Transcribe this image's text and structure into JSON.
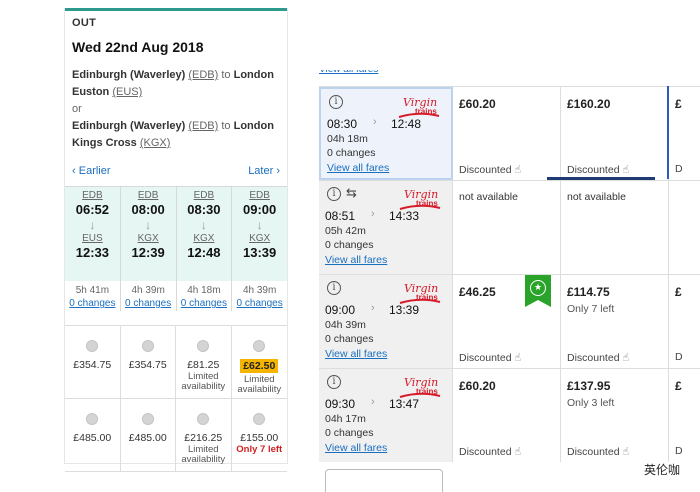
{
  "outbound": {
    "label": "OUT",
    "date": "Wed 22nd Aug 2018",
    "route1": {
      "from": "Edinburgh (Waverley)",
      "from_code": "(EDB)",
      "to_word": "to",
      "to": "London Euston",
      "to_code": "(EUS)"
    },
    "or": "or",
    "route2": {
      "from": "Edinburgh (Waverley)",
      "from_code": "(EDB)",
      "to_word": "to",
      "to": "London Kings Cross",
      "to_code": "(KGX)"
    },
    "earlier": "Earlier",
    "later": "Later",
    "trains": [
      {
        "from": "EDB",
        "dep": "06:52",
        "to": "EUS",
        "arr": "12:33",
        "dur": "5h 41m",
        "changes": "0 changes"
      },
      {
        "from": "EDB",
        "dep": "08:00",
        "to": "KGX",
        "arr": "12:39",
        "dur": "4h 39m",
        "changes": "0 changes"
      },
      {
        "from": "EDB",
        "dep": "08:30",
        "to": "KGX",
        "arr": "12:48",
        "dur": "4h 18m",
        "changes": "0 changes"
      },
      {
        "from": "EDB",
        "dep": "09:00",
        "to": "KGX",
        "arr": "13:39",
        "dur": "4h 39m",
        "changes": "0 changes"
      }
    ],
    "fares": [
      {
        "price": "£354.75",
        "note": "",
        "highlight": false
      },
      {
        "price": "£354.75",
        "note": "",
        "highlight": false
      },
      {
        "price": "£81.25",
        "note": "Limited availability",
        "highlight": false
      },
      {
        "price": "£62.50",
        "note": "Limited availability",
        "highlight": true
      },
      {
        "price": "£485.00",
        "note": "",
        "highlight": false
      },
      {
        "price": "£485.00",
        "note": "",
        "highlight": false
      },
      {
        "price": "£216.25",
        "note": "Limited availability",
        "highlight": false
      },
      {
        "price": "£155.00",
        "note": "Only 7 left",
        "highlight": false,
        "red": true
      }
    ]
  },
  "table": {
    "top_link": "View all fares",
    "rows": [
      {
        "dep": "08:30",
        "arr": "12:48",
        "dur": "04h 18m",
        "changes": "0 changes",
        "link": "View all fares",
        "selected": true,
        "swap": false,
        "p1": "£60.20",
        "p1_note": "",
        "p1_disc": "Discounted",
        "p2": "£160.20",
        "p2_note": "",
        "p2_disc": "Discounted",
        "p3": "£",
        "p3_disc": "D"
      },
      {
        "dep": "08:51",
        "arr": "14:33",
        "dur": "05h 42m",
        "changes": "0 changes",
        "link": "View all fares",
        "selected": false,
        "swap": true,
        "p1": "not available",
        "p1_note": "",
        "p1_disc": "",
        "p2": "not available",
        "p2_note": "",
        "p2_disc": "",
        "p3": "",
        "p3_disc": ""
      },
      {
        "dep": "09:00",
        "arr": "13:39",
        "dur": "04h 39m",
        "changes": "0 changes",
        "link": "View all fares",
        "selected": false,
        "swap": false,
        "p1": "£46.25",
        "p1_note": "",
        "p1_disc": "Discounted",
        "p2": "£114.75",
        "p2_note": "Only 7 left",
        "p2_disc": "Discounted",
        "p3": "£",
        "p3_disc": "D"
      },
      {
        "dep": "09:30",
        "arr": "13:47",
        "dur": "04h 17m",
        "changes": "0 changes",
        "link": "View all fares",
        "selected": false,
        "swap": false,
        "p1": "£60.20",
        "p1_note": "",
        "p1_disc": "Discounted",
        "p2": "£137.95",
        "p2_note": "Only 3 left",
        "p2_disc": "Discounted",
        "p3": "£",
        "p3_disc": "D"
      }
    ]
  },
  "logo_text": "trains",
  "overlay_text": "英伦咖"
}
